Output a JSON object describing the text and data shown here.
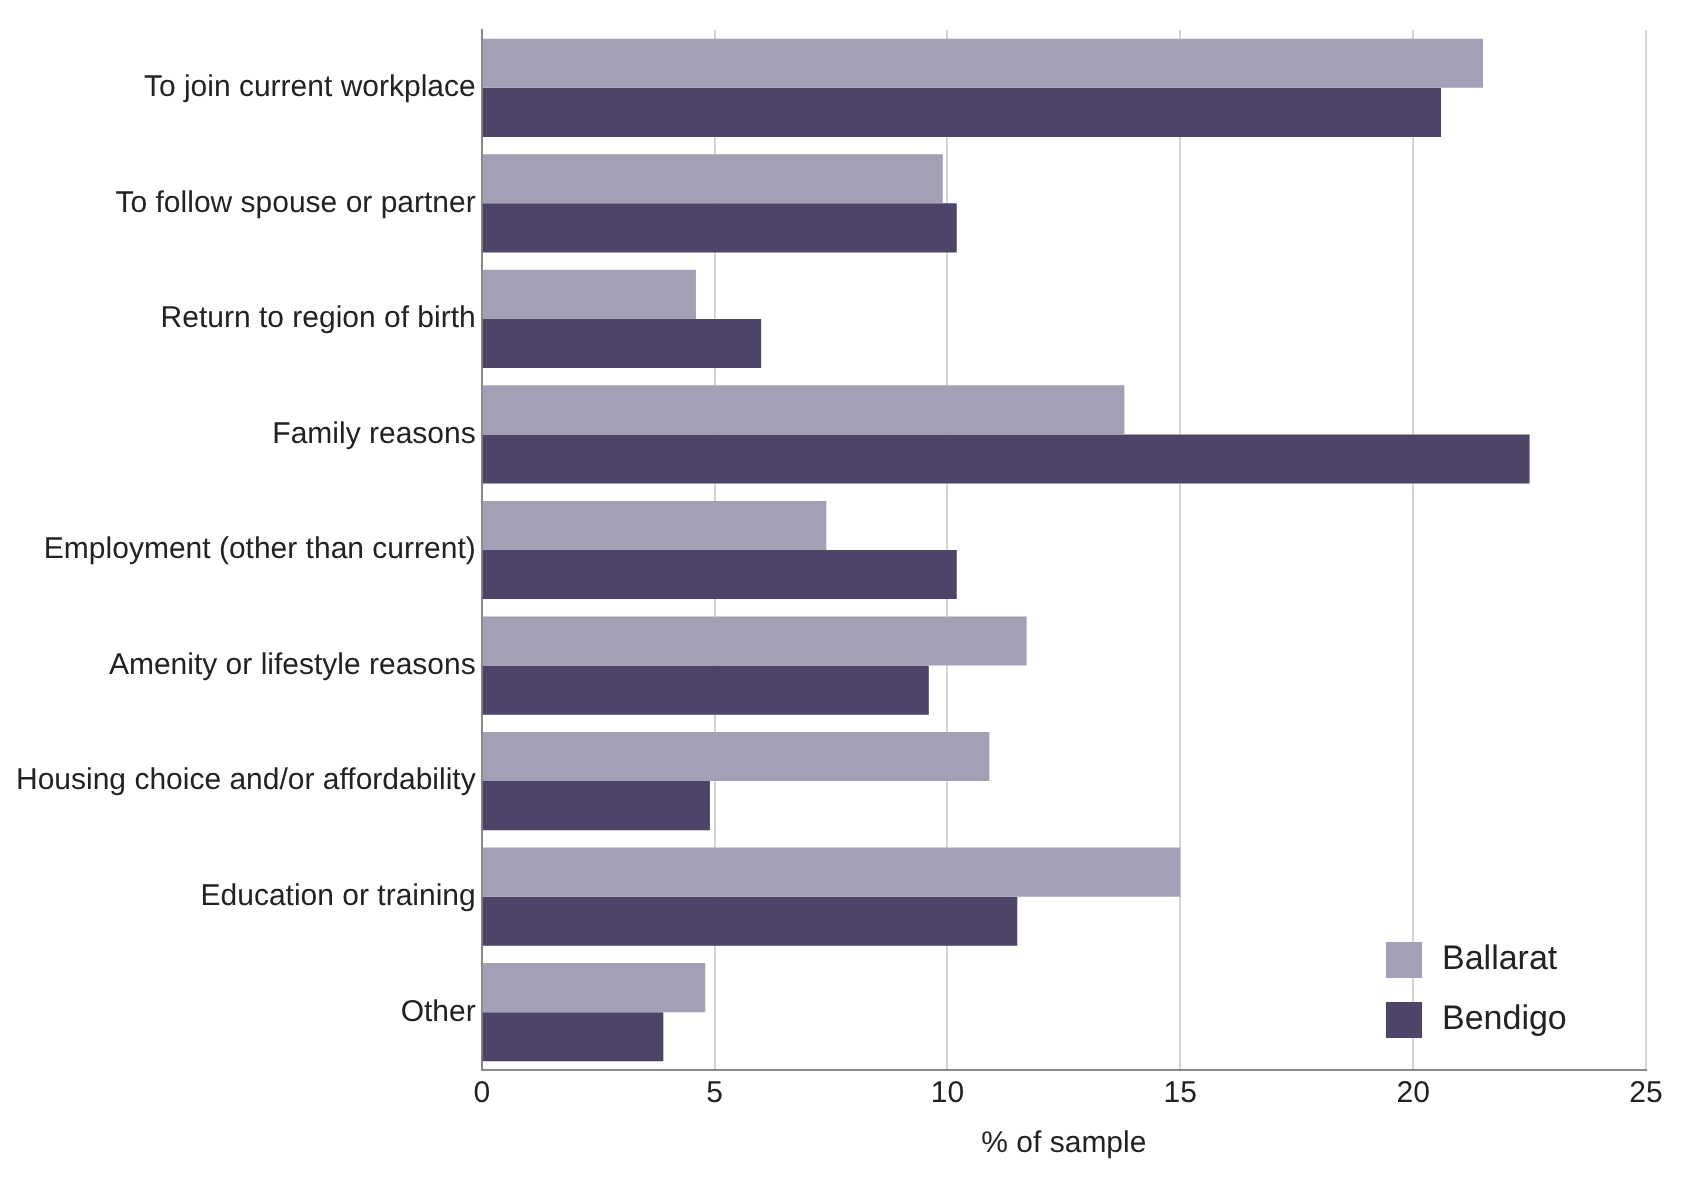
{
  "chart_data": {
    "type": "bar",
    "orientation": "horizontal",
    "xlabel": "% of sample",
    "categories": [
      "To join current workplace",
      "To follow spouse or partner",
      "Return to region of birth",
      "Family reasons",
      "Employment (other than current)",
      "Amenity or lifestyle reasons",
      "Housing choice and/or affordability",
      "Education or training",
      "Other"
    ],
    "series": [
      {
        "name": "Ballarat",
        "color": "#a39fb5",
        "values": [
          21.5,
          9.9,
          4.6,
          13.8,
          7.4,
          11.7,
          10.9,
          15.0,
          4.8
        ]
      },
      {
        "name": "Bendigo",
        "color": "#4e4468",
        "values": [
          20.6,
          10.2,
          6.0,
          22.5,
          10.2,
          9.6,
          4.9,
          11.5,
          3.9
        ]
      }
    ],
    "xlim": [
      0,
      25
    ],
    "xticks": [
      0,
      5,
      10,
      15,
      20,
      25
    ],
    "grid": "x",
    "legend": "bottom right"
  }
}
